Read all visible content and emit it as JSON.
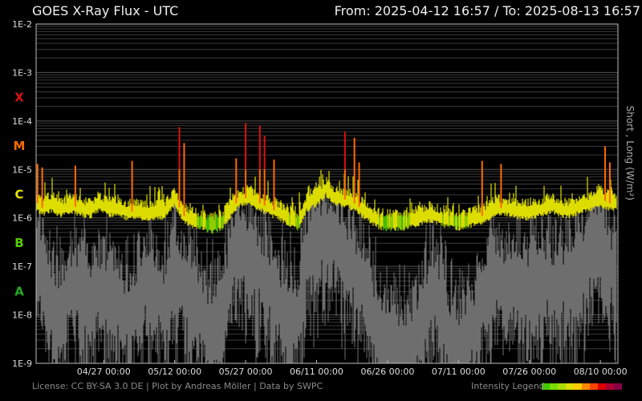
{
  "header": {
    "title": "GOES X-Ray Flux - UTC",
    "from_label": "From:",
    "from_value": "2025-04-12 16:57",
    "separator": "/",
    "to_label": "To:",
    "to_value": "2025-08-13 16:57"
  },
  "footer": {
    "license": "License: CC BY-SA 3.0 DE | Plot by Andreas Möller | Data by SWPC",
    "intensity_label": "Intensity Legend",
    "intensity_colors": [
      "#44cc00",
      "#77dd00",
      "#aadd00",
      "#dddd00",
      "#ffcc00",
      "#ff8800",
      "#ff4400",
      "#dd0000",
      "#aa0033",
      "#880044"
    ]
  },
  "chart_data": {
    "type": "line",
    "title": "GOES X-Ray Flux - UTC",
    "xlabel": "",
    "ylabel": "Short , Long (W/m²)",
    "y_scale": "log",
    "ylim": [
      1e-09,
      0.01
    ],
    "xlim": [
      "2025-04-12 16:57",
      "2025-08-13 16:57"
    ],
    "y_tick_labels": [
      "1E-2",
      "1E-3",
      "1E-4",
      "1E-5",
      "1E-6",
      "1E-7",
      "1E-8",
      "1E-9"
    ],
    "x_tick_labels": [
      "04/27 00:00",
      "05/12 00:00",
      "05/27 00:00",
      "06/11 00:00",
      "06/26 00:00",
      "07/11 00:00",
      "07/26 00:00",
      "08/10 00:00"
    ],
    "flare_classes": [
      {
        "label": "X",
        "color": "#dd1111"
      },
      {
        "label": "M",
        "color": "#ff6a00"
      },
      {
        "label": "C",
        "color": "#e6e600"
      },
      {
        "label": "B",
        "color": "#55cc00"
      },
      {
        "label": "A",
        "color": "#22aa22"
      }
    ],
    "grid": true,
    "colors": {
      "short_channel": "#6e6e6e",
      "long_channel_low": "#44bb00",
      "long_channel_mid": "#dddd00",
      "long_channel_high": "#ff6a00",
      "long_channel_peak": "#dd1111"
    },
    "series": [
      {
        "name": "Long",
        "x": [
          "04/12",
          "04/14",
          "04/16",
          "04/18",
          "04/20",
          "04/22",
          "04/24",
          "04/26",
          "04/28",
          "04/30",
          "05/02",
          "05/04",
          "05/06",
          "05/08",
          "05/10",
          "05/12",
          "05/14",
          "05/16",
          "05/18",
          "05/20",
          "05/22",
          "05/24",
          "05/26",
          "05/28",
          "05/30",
          "06/01",
          "06/03",
          "06/05",
          "06/07",
          "06/09",
          "06/11",
          "06/13",
          "06/15",
          "06/17",
          "06/19",
          "06/21",
          "06/23",
          "06/25",
          "06/27",
          "06/29",
          "07/01",
          "07/03",
          "07/05",
          "07/07",
          "07/09",
          "07/11",
          "07/13",
          "07/15",
          "07/17",
          "07/19",
          "07/21",
          "07/23",
          "07/25",
          "07/27",
          "07/29",
          "07/31",
          "08/02",
          "08/04",
          "08/06",
          "08/08",
          "08/10",
          "08/12"
        ],
        "values": [
          2.5e-06,
          1.6e-06,
          1.9e-06,
          1.5e-06,
          1.8e-06,
          1.6e-06,
          1.4e-06,
          2e-06,
          1.5e-06,
          1.6e-06,
          1.3e-06,
          1.4e-06,
          1.2e-06,
          1.3e-06,
          1.4e-06,
          2.5e-06,
          1.1e-06,
          9e-07,
          8e-07,
          7e-07,
          8e-07,
          1.6e-06,
          2.5e-06,
          2.6e-06,
          2e-06,
          1.6e-06,
          1.3e-06,
          1e-06,
          8e-07,
          2e-06,
          2.5e-06,
          4e-06,
          2.5e-06,
          2.4e-06,
          2e-06,
          1.4e-06,
          1e-06,
          8e-07,
          8e-07,
          8e-07,
          9e-07,
          1e-06,
          1.2e-06,
          1e-06,
          9e-07,
          8e-07,
          9e-07,
          1e-06,
          1.2e-06,
          1.6e-06,
          1.6e-06,
          1.4e-06,
          1.3e-06,
          1.4e-06,
          1.6e-06,
          1.8e-06,
          1.4e-06,
          1.5e-06,
          1.8e-06,
          2e-06,
          2.5e-06,
          2e-06
        ]
      },
      {
        "name": "Short",
        "x": [
          "04/12",
          "04/14",
          "04/16",
          "04/18",
          "04/20",
          "04/22",
          "04/24",
          "04/26",
          "04/28",
          "04/30",
          "05/02",
          "05/04",
          "05/06",
          "05/08",
          "05/10",
          "05/12",
          "05/14",
          "05/16",
          "05/18",
          "05/20",
          "05/22",
          "05/24",
          "05/26",
          "05/28",
          "05/30",
          "06/01",
          "06/03",
          "06/05",
          "06/07",
          "06/09",
          "06/11",
          "06/13",
          "06/15",
          "06/17",
          "06/19",
          "06/21",
          "06/23",
          "06/25",
          "06/27",
          "06/29",
          "07/01",
          "07/03",
          "07/05",
          "07/07",
          "07/09",
          "07/11",
          "07/13",
          "07/15",
          "07/17",
          "07/19",
          "07/21",
          "07/23",
          "07/25",
          "07/27",
          "07/29",
          "07/31",
          "08/02",
          "08/04",
          "08/06",
          "08/08",
          "08/10",
          "08/12"
        ],
        "values": [
          3e-07,
          1e-07,
          2e-08,
          8e-09,
          5e-08,
          3e-08,
          2e-08,
          4e-08,
          3e-08,
          2e-08,
          1e-08,
          2e-08,
          5e-08,
          3e-08,
          2e-08,
          1e-07,
          4e-08,
          3e-08,
          1e-08,
          5e-09,
          8e-09,
          2e-07,
          3e-07,
          2e-07,
          8e-08,
          4e-08,
          2e-08,
          8e-09,
          1e-08,
          2e-07,
          4e-07,
          6e-07,
          3e-07,
          2e-07,
          1e-07,
          5e-08,
          1e-08,
          3e-09,
          3e-09,
          2e-09,
          3e-09,
          5e-09,
          4e-08,
          2e-08,
          4e-09,
          2e-09,
          3e-09,
          1e-08,
          3e-08,
          6e-08,
          5e-08,
          4e-08,
          3e-08,
          5e-08,
          7e-08,
          4e-08,
          5e-08,
          6e-08,
          8e-08,
          2e-07,
          5e-07,
          1e-07
        ]
      }
    ],
    "flare_peaks": [
      {
        "x": "04/13",
        "value": 1.3e-05
      },
      {
        "x": "04/14",
        "value": 1.1e-05
      },
      {
        "x": "04/21",
        "value": 1.2e-05
      },
      {
        "x": "05/03",
        "value": 1.5e-05
      },
      {
        "x": "05/13",
        "value": 7.5e-05
      },
      {
        "x": "05/14",
        "value": 3.5e-05
      },
      {
        "x": "05/25",
        "value": 1.7e-05
      },
      {
        "x": "05/27",
        "value": 9e-05
      },
      {
        "x": "05/30",
        "value": 8e-05
      },
      {
        "x": "05/31",
        "value": 5e-05
      },
      {
        "x": "06/02",
        "value": 1.6e-05
      },
      {
        "x": "06/17",
        "value": 6e-05
      },
      {
        "x": "06/19",
        "value": 4.5e-05
      },
      {
        "x": "06/20",
        "value": 1.4e-05
      },
      {
        "x": "07/16",
        "value": 1.5e-05
      },
      {
        "x": "07/20",
        "value": 1.3e-05
      },
      {
        "x": "08/11",
        "value": 3e-05
      },
      {
        "x": "08/12",
        "value": 1.4e-05
      }
    ]
  }
}
